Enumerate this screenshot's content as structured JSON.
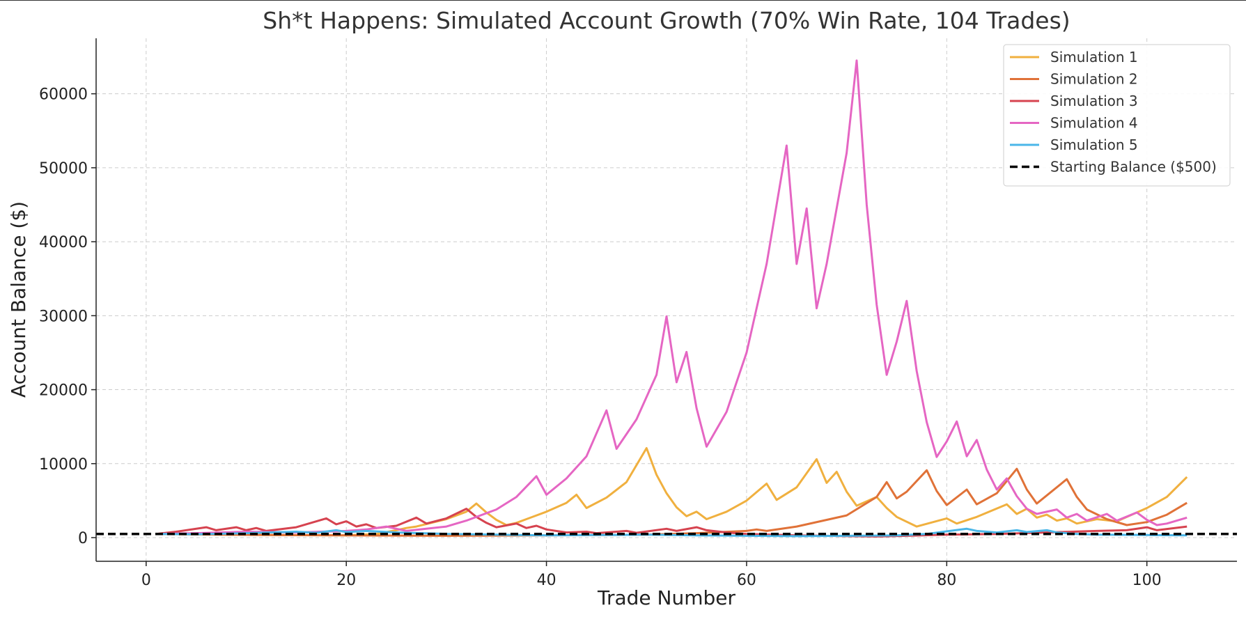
{
  "chart_data": {
    "type": "line",
    "title": "Sh*t Happens: Simulated Account Growth (70% Win Rate, 104 Trades)",
    "xlabel": "Trade Number",
    "ylabel": "Account Balance ($)",
    "xlim": [
      -5,
      109
    ],
    "ylim": [
      -3200,
      67500
    ],
    "xticks": [
      0,
      20,
      40,
      60,
      80,
      100
    ],
    "yticks": [
      0,
      10000,
      20000,
      30000,
      40000,
      50000,
      60000
    ],
    "grid": true,
    "legend_position": "top-right",
    "series": [
      {
        "name": "Simulation 1",
        "color": "#f0b03f",
        "points": [
          [
            1,
            500
          ],
          [
            5,
            420
          ],
          [
            10,
            380
          ],
          [
            15,
            330
          ],
          [
            20,
            300
          ],
          [
            23,
            500
          ],
          [
            25,
            1000
          ],
          [
            26,
            1300
          ],
          [
            27,
            1500
          ],
          [
            30,
            2500
          ],
          [
            32,
            3500
          ],
          [
            33,
            4600
          ],
          [
            34,
            3400
          ],
          [
            35,
            2400
          ],
          [
            36,
            1700
          ],
          [
            37,
            2000
          ],
          [
            40,
            3500
          ],
          [
            42,
            4700
          ],
          [
            43,
            5800
          ],
          [
            44,
            4000
          ],
          [
            46,
            5400
          ],
          [
            48,
            7500
          ],
          [
            50,
            12100
          ],
          [
            51,
            8500
          ],
          [
            52,
            6000
          ],
          [
            53,
            4100
          ],
          [
            54,
            2900
          ],
          [
            55,
            3500
          ],
          [
            56,
            2500
          ],
          [
            58,
            3500
          ],
          [
            60,
            5000
          ],
          [
            62,
            7300
          ],
          [
            63,
            5100
          ],
          [
            65,
            6800
          ],
          [
            67,
            10600
          ],
          [
            68,
            7400
          ],
          [
            69,
            8900
          ],
          [
            70,
            6200
          ],
          [
            71,
            4300
          ],
          [
            73,
            5500
          ],
          [
            74,
            4000
          ],
          [
            75,
            2800
          ],
          [
            77,
            1500
          ],
          [
            80,
            2600
          ],
          [
            81,
            1900
          ],
          [
            83,
            2800
          ],
          [
            86,
            4500
          ],
          [
            87,
            3200
          ],
          [
            88,
            3900
          ],
          [
            89,
            2700
          ],
          [
            90,
            3100
          ],
          [
            91,
            2300
          ],
          [
            92,
            2600
          ],
          [
            93,
            1900
          ],
          [
            95,
            2500
          ],
          [
            97,
            2200
          ],
          [
            100,
            4000
          ],
          [
            102,
            5500
          ],
          [
            104,
            8200
          ]
        ]
      },
      {
        "name": "Simulation 2",
        "color": "#e07238",
        "points": [
          [
            1,
            500
          ],
          [
            5,
            450
          ],
          [
            10,
            380
          ],
          [
            20,
            300
          ],
          [
            30,
            250
          ],
          [
            40,
            300
          ],
          [
            50,
            400
          ],
          [
            55,
            600
          ],
          [
            60,
            900
          ],
          [
            61,
            1100
          ],
          [
            62,
            900
          ],
          [
            65,
            1500
          ],
          [
            70,
            3000
          ],
          [
            73,
            5500
          ],
          [
            74,
            7500
          ],
          [
            75,
            5300
          ],
          [
            76,
            6200
          ],
          [
            78,
            9100
          ],
          [
            79,
            6300
          ],
          [
            80,
            4400
          ],
          [
            82,
            6500
          ],
          [
            83,
            4500
          ],
          [
            85,
            6000
          ],
          [
            87,
            9300
          ],
          [
            88,
            6500
          ],
          [
            89,
            4600
          ],
          [
            92,
            7900
          ],
          [
            93,
            5500
          ],
          [
            94,
            3800
          ],
          [
            96,
            2500
          ],
          [
            98,
            1700
          ],
          [
            100,
            2100
          ],
          [
            102,
            3100
          ],
          [
            104,
            4700
          ]
        ]
      },
      {
        "name": "Simulation 3",
        "color": "#d6434f",
        "points": [
          [
            1,
            500
          ],
          [
            3,
            800
          ],
          [
            6,
            1400
          ],
          [
            7,
            1000
          ],
          [
            9,
            1400
          ],
          [
            10,
            1000
          ],
          [
            11,
            1300
          ],
          [
            12,
            900
          ],
          [
            15,
            1400
          ],
          [
            18,
            2600
          ],
          [
            19,
            1800
          ],
          [
            20,
            2200
          ],
          [
            21,
            1500
          ],
          [
            22,
            1800
          ],
          [
            23,
            1300
          ],
          [
            25,
            1600
          ],
          [
            27,
            2700
          ],
          [
            28,
            1900
          ],
          [
            30,
            2600
          ],
          [
            32,
            3900
          ],
          [
            33,
            2800
          ],
          [
            34,
            2000
          ],
          [
            35,
            1400
          ],
          [
            37,
            1900
          ],
          [
            38,
            1300
          ],
          [
            39,
            1600
          ],
          [
            40,
            1100
          ],
          [
            42,
            700
          ],
          [
            44,
            800
          ],
          [
            45,
            600
          ],
          [
            48,
            900
          ],
          [
            49,
            650
          ],
          [
            52,
            1200
          ],
          [
            53,
            900
          ],
          [
            55,
            1400
          ],
          [
            56,
            1000
          ],
          [
            58,
            700
          ],
          [
            60,
            500
          ],
          [
            65,
            300
          ],
          [
            70,
            200
          ],
          [
            73,
            150
          ],
          [
            76,
            250
          ],
          [
            80,
            400
          ],
          [
            85,
            500
          ],
          [
            90,
            700
          ],
          [
            95,
            900
          ],
          [
            98,
            1000
          ],
          [
            100,
            1400
          ],
          [
            101,
            1000
          ],
          [
            104,
            1500
          ]
        ]
      },
      {
        "name": "Simulation 4",
        "color": "#e566c3",
        "points": [
          [
            1,
            500
          ],
          [
            5,
            600
          ],
          [
            10,
            800
          ],
          [
            15,
            700
          ],
          [
            20,
            900
          ],
          [
            22,
            1100
          ],
          [
            24,
            1500
          ],
          [
            25,
            1200
          ],
          [
            26,
            900
          ],
          [
            30,
            1500
          ],
          [
            32,
            2300
          ],
          [
            35,
            3800
          ],
          [
            37,
            5500
          ],
          [
            39,
            8300
          ],
          [
            40,
            5800
          ],
          [
            42,
            8000
          ],
          [
            44,
            11000
          ],
          [
            46,
            17200
          ],
          [
            47,
            12000
          ],
          [
            49,
            16000
          ],
          [
            51,
            22000
          ],
          [
            52,
            29900
          ],
          [
            53,
            21000
          ],
          [
            54,
            25100
          ],
          [
            55,
            17500
          ],
          [
            56,
            12300
          ],
          [
            58,
            17000
          ],
          [
            60,
            25000
          ],
          [
            62,
            37000
          ],
          [
            64,
            53000
          ],
          [
            65,
            37000
          ],
          [
            66,
            44500
          ],
          [
            67,
            31000
          ],
          [
            68,
            37000
          ],
          [
            70,
            52000
          ],
          [
            71,
            64500
          ],
          [
            72,
            45000
          ],
          [
            73,
            31500
          ],
          [
            74,
            22000
          ],
          [
            75,
            26500
          ],
          [
            76,
            32000
          ],
          [
            77,
            22500
          ],
          [
            78,
            15600
          ],
          [
            79,
            10900
          ],
          [
            80,
            13000
          ],
          [
            81,
            15700
          ],
          [
            82,
            11000
          ],
          [
            83,
            13200
          ],
          [
            84,
            9200
          ],
          [
            85,
            6500
          ],
          [
            86,
            8000
          ],
          [
            87,
            5600
          ],
          [
            88,
            3900
          ],
          [
            89,
            3200
          ],
          [
            91,
            3800
          ],
          [
            92,
            2700
          ],
          [
            93,
            3200
          ],
          [
            94,
            2300
          ],
          [
            96,
            3200
          ],
          [
            97,
            2300
          ],
          [
            99,
            3400
          ],
          [
            100,
            2400
          ],
          [
            101,
            1700
          ],
          [
            102,
            1900
          ],
          [
            104,
            2700
          ]
        ]
      },
      {
        "name": "Simulation 5",
        "color": "#4ab6e8",
        "points": [
          [
            1,
            500
          ],
          [
            5,
            450
          ],
          [
            10,
            600
          ],
          [
            15,
            800
          ],
          [
            17,
            650
          ],
          [
            19,
            1000
          ],
          [
            20,
            750
          ],
          [
            22,
            900
          ],
          [
            25,
            700
          ],
          [
            30,
            500
          ],
          [
            35,
            400
          ],
          [
            40,
            300
          ],
          [
            45,
            350
          ],
          [
            50,
            400
          ],
          [
            55,
            300
          ],
          [
            60,
            250
          ],
          [
            65,
            200
          ],
          [
            70,
            250
          ],
          [
            75,
            300
          ],
          [
            78,
            500
          ],
          [
            80,
            850
          ],
          [
            82,
            1200
          ],
          [
            83,
            900
          ],
          [
            85,
            700
          ],
          [
            87,
            1000
          ],
          [
            88,
            750
          ],
          [
            90,
            1000
          ],
          [
            91,
            700
          ],
          [
            93,
            500
          ],
          [
            95,
            400
          ],
          [
            100,
            350
          ],
          [
            104,
            300
          ]
        ]
      },
      {
        "name": "Starting Balance ($500)",
        "color": "#000000",
        "dashed": true,
        "hline": 500
      }
    ]
  }
}
